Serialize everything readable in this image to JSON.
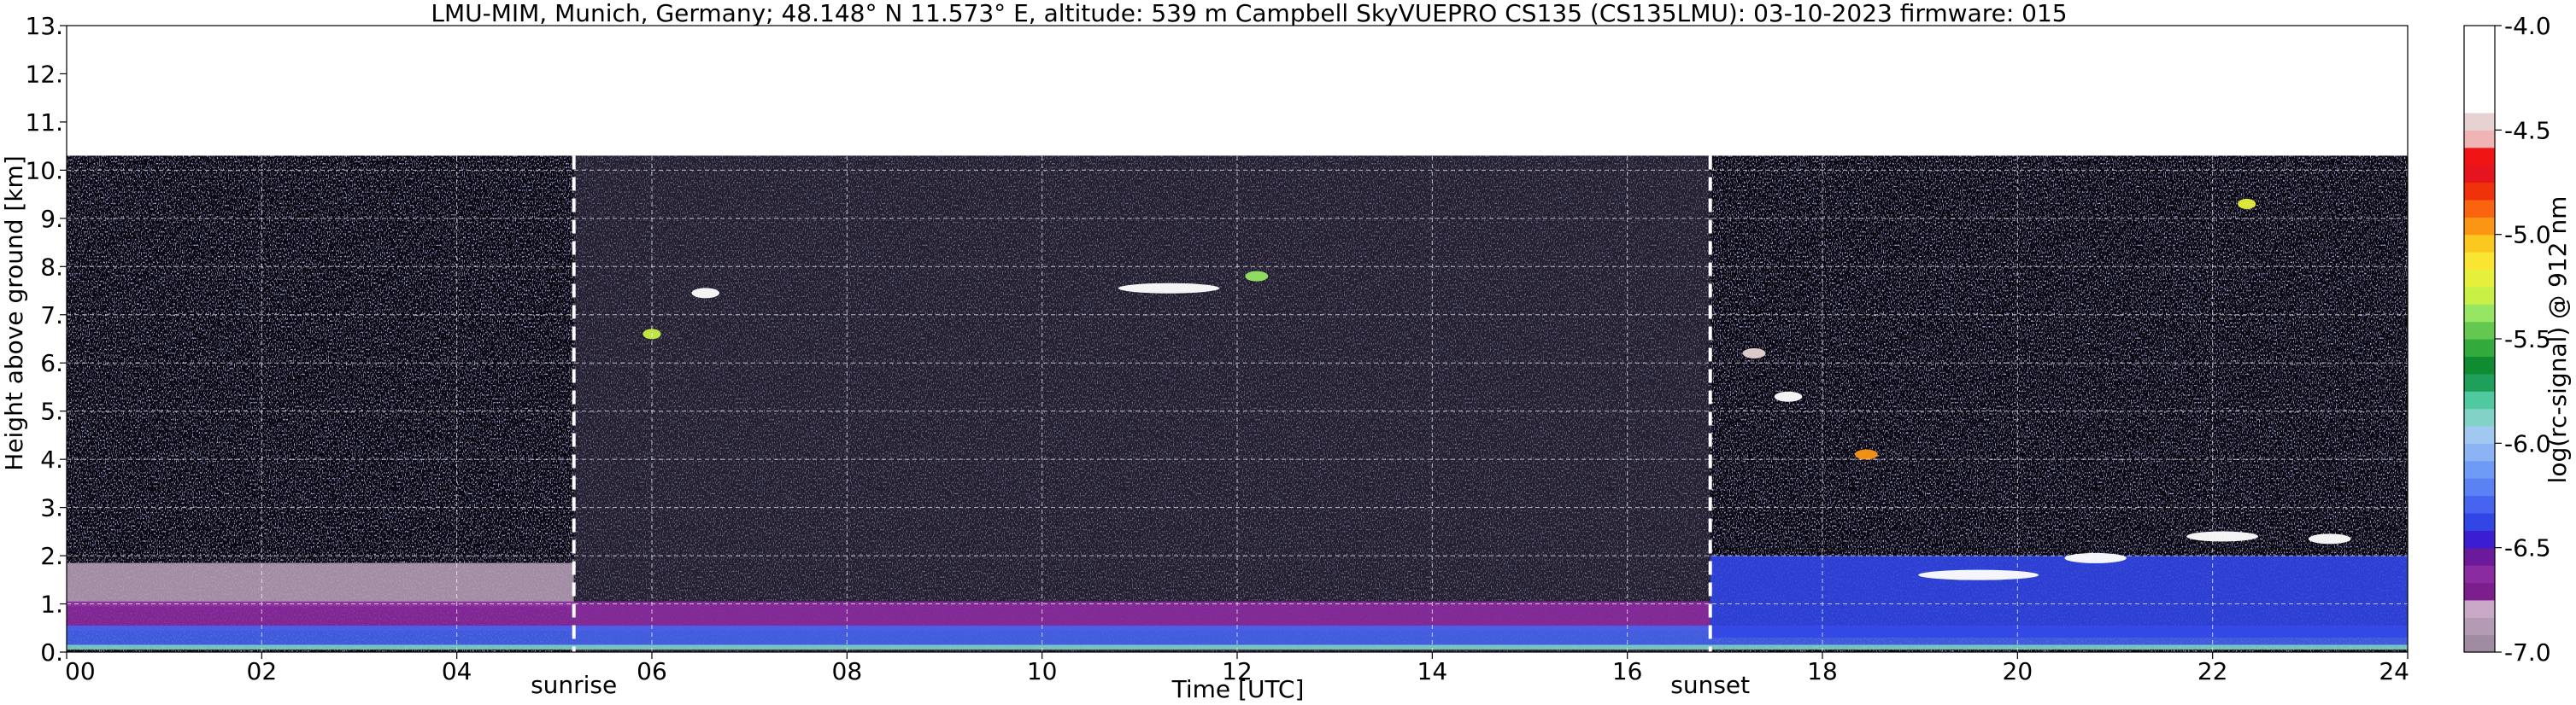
{
  "chart_data": {
    "type": "heatmap",
    "title": "LMU-MIM, Munich, Germany; 48.148° N 11.573° E, altitude: 539 m    Campbell SkyVUEPRO CS135 (CS135LMU): 03-10-2023    firmware: 015",
    "xlabel": "Time [UTC]",
    "ylabel": "Height above ground [km]",
    "colorbar_label": "log(rc-signal) @ 912 nm",
    "xlim": [
      0,
      24
    ],
    "ylim": [
      0,
      13
    ],
    "data_top_km": 10.3,
    "x_ticks": [
      {
        "v": 0,
        "t": "00"
      },
      {
        "v": 2,
        "t": "02"
      },
      {
        "v": 4,
        "t": "04"
      },
      {
        "v": 6,
        "t": "06"
      },
      {
        "v": 8,
        "t": "08"
      },
      {
        "v": 10,
        "t": "10"
      },
      {
        "v": 12,
        "t": "12"
      },
      {
        "v": 14,
        "t": "14"
      },
      {
        "v": 16,
        "t": "16"
      },
      {
        "v": 18,
        "t": "18"
      },
      {
        "v": 20,
        "t": "20"
      },
      {
        "v": 22,
        "t": "22"
      },
      {
        "v": 24,
        "t": "24"
      }
    ],
    "y_ticks": [
      {
        "v": 0,
        "t": "0."
      },
      {
        "v": 1,
        "t": "1."
      },
      {
        "v": 2,
        "t": "2."
      },
      {
        "v": 3,
        "t": "3."
      },
      {
        "v": 4,
        "t": "4."
      },
      {
        "v": 5,
        "t": "5."
      },
      {
        "v": 6,
        "t": "6."
      },
      {
        "v": 7,
        "t": "7."
      },
      {
        "v": 8,
        "t": "8."
      },
      {
        "v": 9,
        "t": "9."
      },
      {
        "v": 10,
        "t": "10."
      },
      {
        "v": 11,
        "t": "11."
      },
      {
        "v": 12,
        "t": "12."
      },
      {
        "v": 13,
        "t": "13."
      }
    ],
    "markers": [
      {
        "label": "sunrise",
        "time": 5.2
      },
      {
        "label": "sunset",
        "time": 16.85
      }
    ],
    "colorbar": {
      "min": -7.0,
      "max": -4.0,
      "ticks": [
        {
          "v": -4.0,
          "t": "-4.0"
        },
        {
          "v": -4.5,
          "t": "-4.5"
        },
        {
          "v": -5.0,
          "t": "-5.0"
        },
        {
          "v": -5.5,
          "t": "-5.5"
        },
        {
          "v": -6.0,
          "t": "-6.0"
        },
        {
          "v": -6.5,
          "t": "-6.5"
        },
        {
          "v": -7.0,
          "t": "-7.0"
        }
      ],
      "colors": [
        "#a08ca0",
        "#b49bb4",
        "#c8aac8",
        "#7c1e8c",
        "#8c2aa0",
        "#6a1a9a",
        "#3c1ed2",
        "#3246e6",
        "#4664f0",
        "#5a82f5",
        "#6e9bf5",
        "#8cb4f5",
        "#a0c8f0",
        "#82d2c8",
        "#50c8a0",
        "#1ea05a",
        "#0f8c32",
        "#32aa3c",
        "#64c850",
        "#96e664",
        "#c8f046",
        "#e6f03c",
        "#fae632",
        "#fac81e",
        "#fa9614",
        "#fa640f",
        "#f0320a",
        "#e6141e",
        "#f01414",
        "#f0b4b4",
        "#e6d2d2",
        "#ffffff",
        "#ffffff",
        "#ffffff",
        "#ffffff",
        "#ffffff"
      ]
    },
    "layers": [
      {
        "label": "nocturnal residual layer (pink)",
        "t0": 0.0,
        "t1": 5.2,
        "z0": 0.95,
        "z1": 1.85,
        "log_signal": -6.9
      },
      {
        "label": "boundary layer purple",
        "t0": 0.0,
        "t1": 16.85,
        "z0": 0.45,
        "z1": 1.05,
        "log_signal": -6.6
      },
      {
        "label": "boundary layer blue",
        "t0": 0.0,
        "t1": 24.0,
        "z0": 0.12,
        "z1": 0.55,
        "log_signal": -6.3
      },
      {
        "label": "near-surface green",
        "t0": 0.0,
        "t1": 24.0,
        "z0": 0.05,
        "z1": 0.15,
        "log_signal": -5.9
      },
      {
        "label": "evening aerosol layer",
        "t0": 16.85,
        "t1": 24.0,
        "z0": 0.3,
        "z1": 2.0,
        "log_signal": -6.4
      }
    ],
    "clouds": [
      {
        "t": 6.55,
        "z": 7.45,
        "w": 0.25,
        "log_signal": -4.2
      },
      {
        "t": 6.0,
        "z": 6.6,
        "w": 0.15,
        "log_signal": -5.3
      },
      {
        "t": 11.3,
        "z": 7.55,
        "w": 1.0,
        "log_signal": -4.2
      },
      {
        "t": 12.2,
        "z": 7.8,
        "w": 0.2,
        "log_signal": -5.4
      },
      {
        "t": 17.3,
        "z": 6.2,
        "w": 0.2,
        "log_signal": -4.5
      },
      {
        "t": 17.65,
        "z": 5.3,
        "w": 0.25,
        "log_signal": -4.4
      },
      {
        "t": 18.45,
        "z": 4.1,
        "w": 0.2,
        "log_signal": -5.0
      },
      {
        "t": 19.6,
        "z": 1.6,
        "w": 1.2,
        "log_signal": -4.3
      },
      {
        "t": 20.8,
        "z": 1.95,
        "w": 0.6,
        "log_signal": -4.2
      },
      {
        "t": 22.1,
        "z": 2.4,
        "w": 0.7,
        "log_signal": -4.3
      },
      {
        "t": 23.2,
        "z": 2.35,
        "w": 0.4,
        "log_signal": -4.4
      },
      {
        "t": 22.35,
        "z": 9.3,
        "w": 0.15,
        "log_signal": -5.2
      }
    ]
  }
}
